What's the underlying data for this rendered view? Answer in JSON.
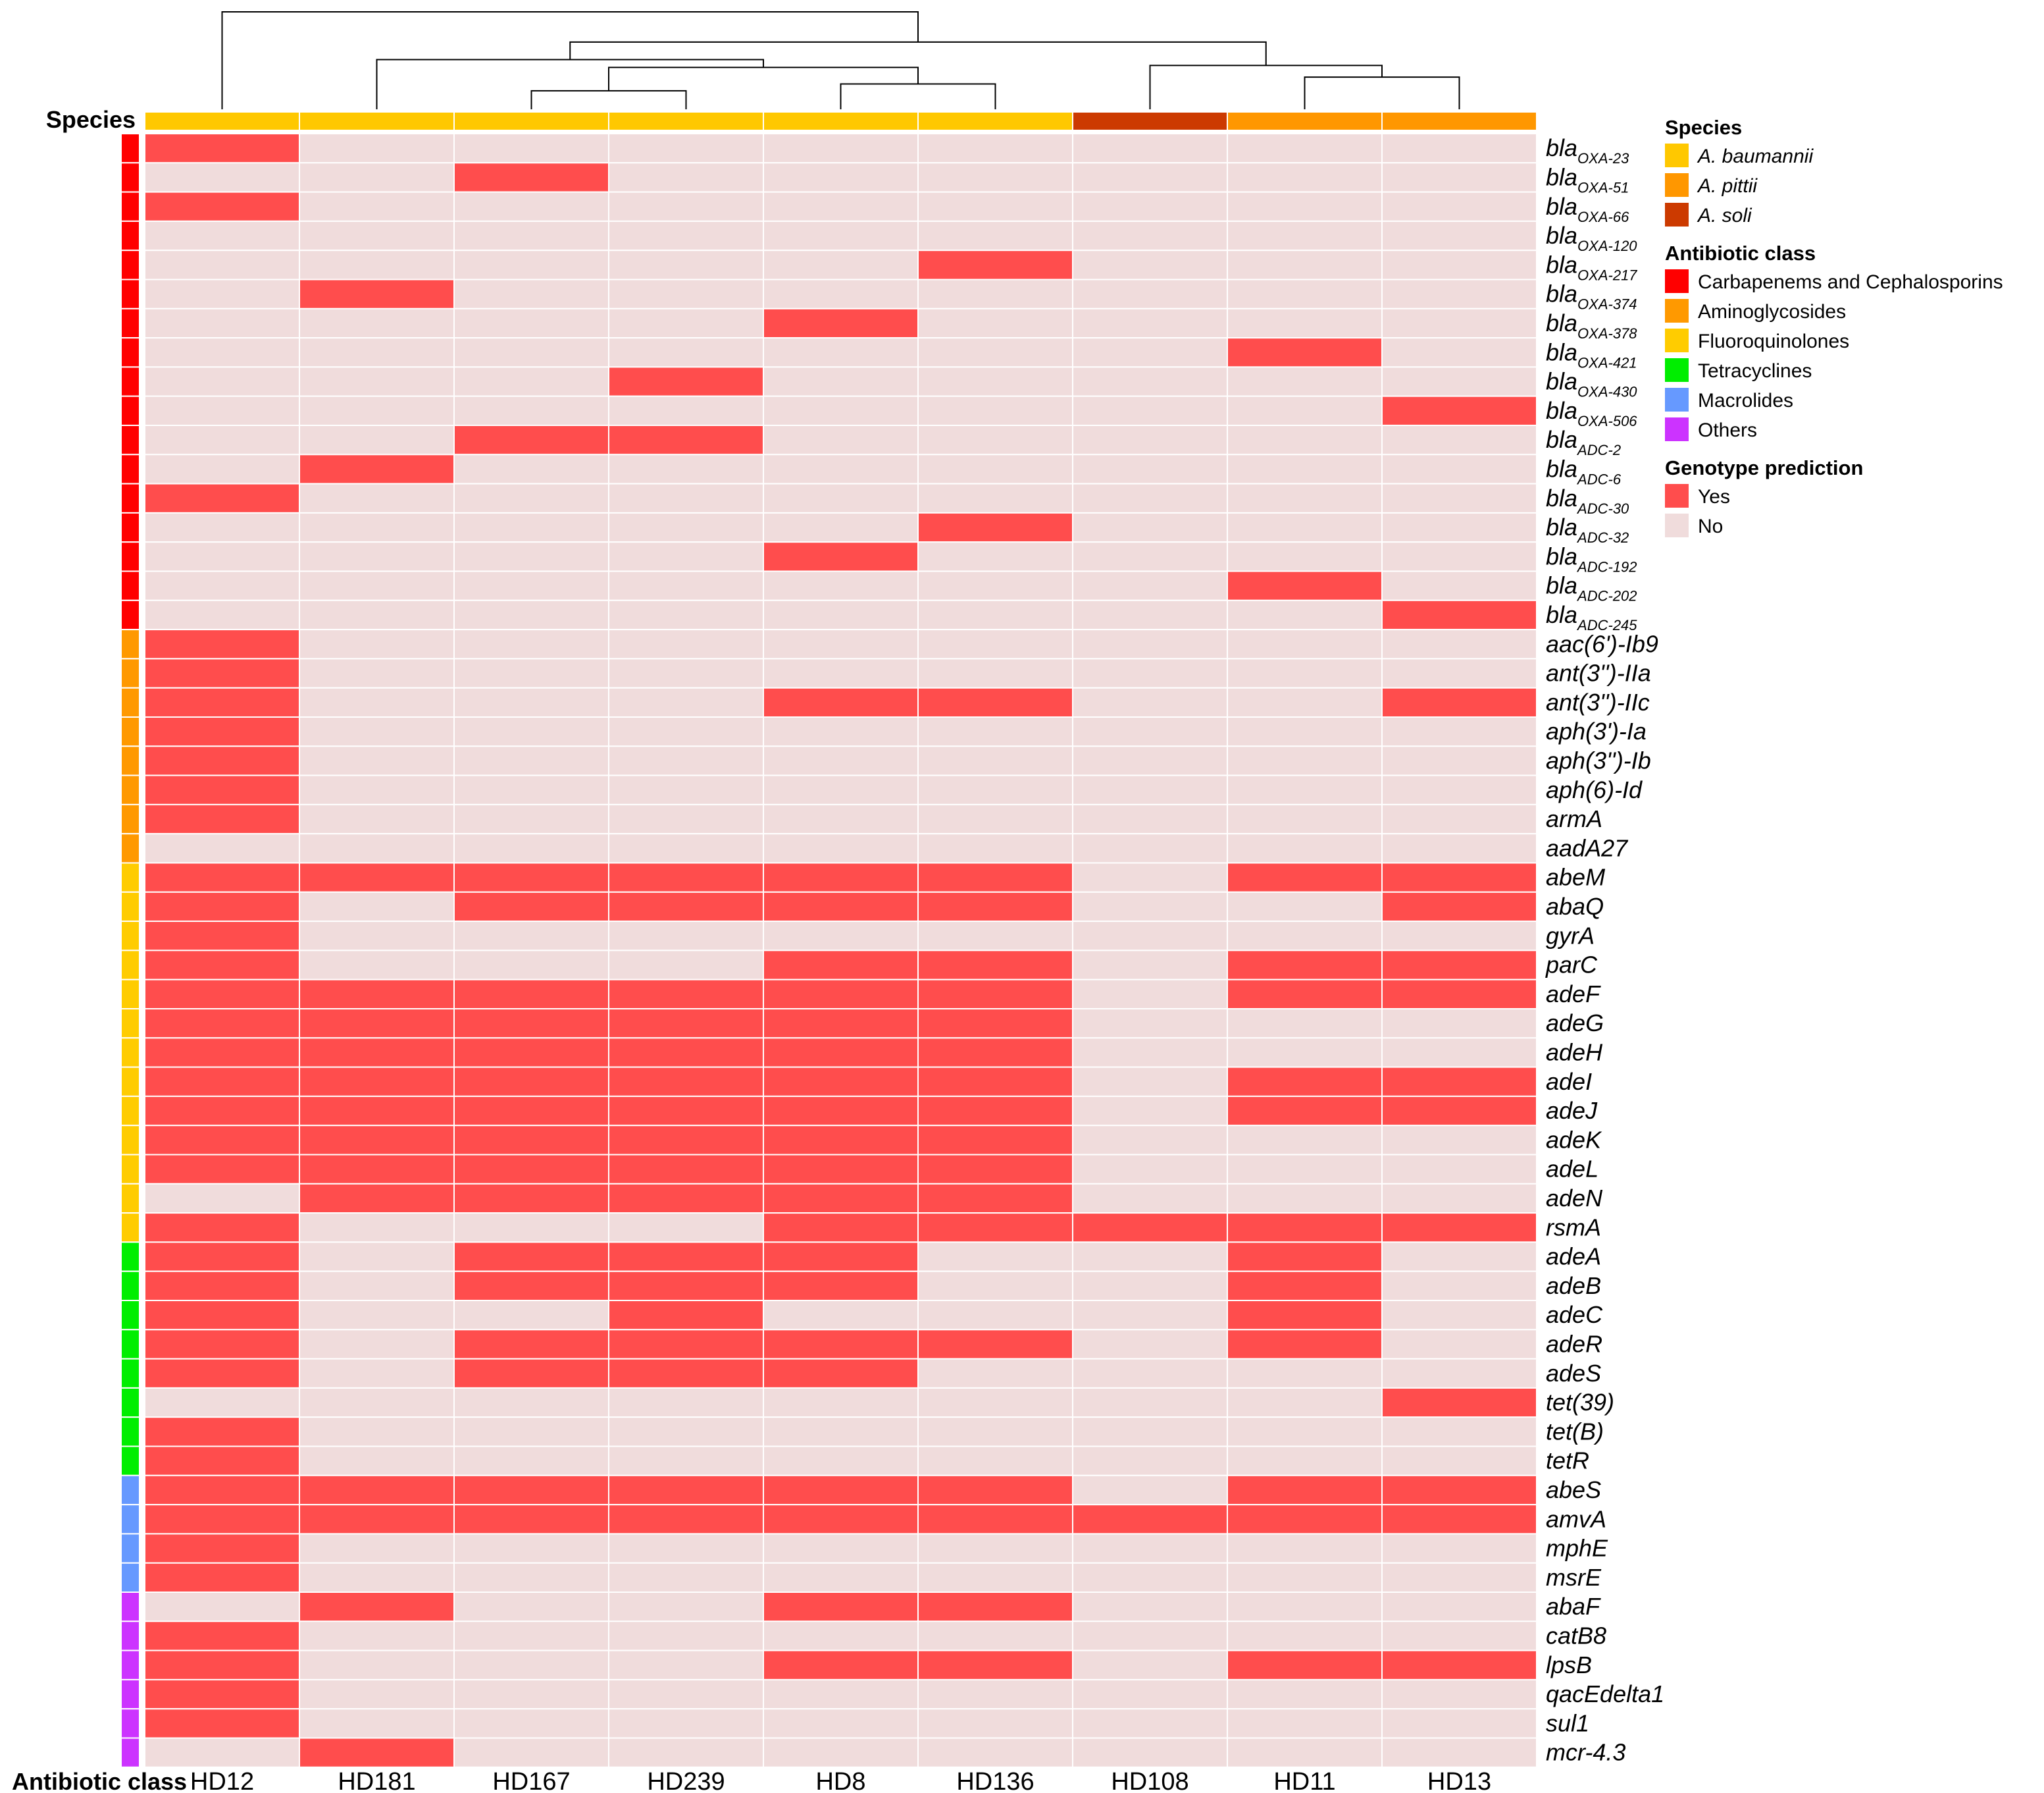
{
  "chart_data": {
    "type": "heatmap",
    "title": "",
    "row_annotation_title": "Antibiotic class",
    "column_annotation_title": "Species",
    "columns": [
      "HD12",
      "HD181",
      "HD167",
      "HD239",
      "HD8",
      "HD136",
      "HD108",
      "HD11",
      "HD13"
    ],
    "column_species": [
      "A. baumannii",
      "A. baumannii",
      "A. baumannii",
      "A. baumannii",
      "A. baumannii",
      "A. baumannii",
      "A. soli",
      "A. pittii",
      "A. pittii"
    ],
    "dendrogram": {
      "merge_order": [
        [
          "HD167",
          "HD239"
        ],
        [
          "HD8",
          "HD136"
        ],
        [
          "HD11",
          "HD13"
        ],
        [
          "HD167+HD239",
          "HD8+HD136"
        ],
        [
          "HD108",
          "HD11+HD13"
        ],
        [
          "HD181",
          "HD167+HD239+HD8+HD136"
        ],
        [
          "HD181+HD167+HD239+HD8+HD136",
          "HD108+HD11+HD13"
        ],
        [
          "HD12",
          "HD181+HD167+HD239+HD8+HD136+HD108+HD11+HD13"
        ]
      ],
      "merge_heights": [
        0.19,
        0.26,
        0.33,
        0.43,
        0.45,
        0.51,
        0.69,
        1.0
      ]
    },
    "rows": [
      {
        "label": "bla",
        "sub": "OXA-23",
        "class": "Carbapenems and Cephalosporins",
        "values": [
          1,
          0,
          0,
          0,
          0,
          0,
          0,
          0,
          0
        ]
      },
      {
        "label": "bla",
        "sub": "OXA-51",
        "class": "Carbapenems and Cephalosporins",
        "values": [
          0,
          0,
          1,
          0,
          0,
          0,
          0,
          0,
          0
        ]
      },
      {
        "label": "bla",
        "sub": "OXA-66",
        "class": "Carbapenems and Cephalosporins",
        "values": [
          1,
          0,
          0,
          0,
          0,
          0,
          0,
          0,
          0
        ]
      },
      {
        "label": "bla",
        "sub": "OXA-120",
        "class": "Carbapenems and Cephalosporins",
        "values": [
          0,
          0,
          0,
          0,
          0,
          0,
          0,
          0,
          0
        ]
      },
      {
        "label": "bla",
        "sub": "OXA-217",
        "class": "Carbapenems and Cephalosporins",
        "values": [
          0,
          0,
          0,
          0,
          0,
          1,
          0,
          0,
          0
        ]
      },
      {
        "label": "bla",
        "sub": "OXA-374",
        "class": "Carbapenems and Cephalosporins",
        "values": [
          0,
          1,
          0,
          0,
          0,
          0,
          0,
          0,
          0
        ]
      },
      {
        "label": "bla",
        "sub": "OXA-378",
        "class": "Carbapenems and Cephalosporins",
        "values": [
          0,
          0,
          0,
          0,
          1,
          0,
          0,
          0,
          0
        ]
      },
      {
        "label": "bla",
        "sub": "OXA-421",
        "class": "Carbapenems and Cephalosporins",
        "values": [
          0,
          0,
          0,
          0,
          0,
          0,
          0,
          1,
          0
        ]
      },
      {
        "label": "bla",
        "sub": "OXA-430",
        "class": "Carbapenems and Cephalosporins",
        "values": [
          0,
          0,
          0,
          1,
          0,
          0,
          0,
          0,
          0
        ]
      },
      {
        "label": "bla",
        "sub": "OXA-506",
        "class": "Carbapenems and Cephalosporins",
        "values": [
          0,
          0,
          0,
          0,
          0,
          0,
          0,
          0,
          1
        ]
      },
      {
        "label": "bla",
        "sub": "ADC-2",
        "class": "Carbapenems and Cephalosporins",
        "values": [
          0,
          0,
          1,
          1,
          0,
          0,
          0,
          0,
          0
        ]
      },
      {
        "label": "bla",
        "sub": "ADC-6",
        "class": "Carbapenems and Cephalosporins",
        "values": [
          0,
          1,
          0,
          0,
          0,
          0,
          0,
          0,
          0
        ]
      },
      {
        "label": "bla",
        "sub": "ADC-30",
        "class": "Carbapenems and Cephalosporins",
        "values": [
          1,
          0,
          0,
          0,
          0,
          0,
          0,
          0,
          0
        ]
      },
      {
        "label": "bla",
        "sub": "ADC-32",
        "class": "Carbapenems and Cephalosporins",
        "values": [
          0,
          0,
          0,
          0,
          0,
          1,
          0,
          0,
          0
        ]
      },
      {
        "label": "bla",
        "sub": "ADC-192",
        "class": "Carbapenems and Cephalosporins",
        "values": [
          0,
          0,
          0,
          0,
          1,
          0,
          0,
          0,
          0
        ]
      },
      {
        "label": "bla",
        "sub": "ADC-202",
        "class": "Carbapenems and Cephalosporins",
        "values": [
          0,
          0,
          0,
          0,
          0,
          0,
          0,
          1,
          0
        ]
      },
      {
        "label": "bla",
        "sub": "ADC-245",
        "class": "Carbapenems and Cephalosporins",
        "values": [
          0,
          0,
          0,
          0,
          0,
          0,
          0,
          0,
          1
        ]
      },
      {
        "label": "aac(6')-Ib9",
        "sub": "",
        "class": "Aminoglycosides",
        "values": [
          1,
          0,
          0,
          0,
          0,
          0,
          0,
          0,
          0
        ]
      },
      {
        "label": "ant(3'')-IIa",
        "sub": "",
        "class": "Aminoglycosides",
        "values": [
          1,
          0,
          0,
          0,
          0,
          0,
          0,
          0,
          0
        ]
      },
      {
        "label": "ant(3'')-IIc",
        "sub": "",
        "class": "Aminoglycosides",
        "values": [
          1,
          0,
          0,
          0,
          1,
          1,
          0,
          0,
          1
        ]
      },
      {
        "label": "aph(3')-Ia",
        "sub": "",
        "class": "Aminoglycosides",
        "values": [
          1,
          0,
          0,
          0,
          0,
          0,
          0,
          0,
          0
        ]
      },
      {
        "label": "aph(3'')-Ib",
        "sub": "",
        "class": "Aminoglycosides",
        "values": [
          1,
          0,
          0,
          0,
          0,
          0,
          0,
          0,
          0
        ]
      },
      {
        "label": "aph(6)-Id",
        "sub": "",
        "class": "Aminoglycosides",
        "values": [
          1,
          0,
          0,
          0,
          0,
          0,
          0,
          0,
          0
        ]
      },
      {
        "label": "armA",
        "sub": "",
        "class": "Aminoglycosides",
        "values": [
          1,
          0,
          0,
          0,
          0,
          0,
          0,
          0,
          0
        ]
      },
      {
        "label": "aadA27",
        "sub": "",
        "class": "Aminoglycosides",
        "values": [
          0,
          0,
          0,
          0,
          0,
          0,
          0,
          0,
          0
        ]
      },
      {
        "label": "abeM",
        "sub": "",
        "class": "Fluoroquinolones",
        "values": [
          1,
          1,
          1,
          1,
          1,
          1,
          0,
          1,
          1
        ]
      },
      {
        "label": "abaQ",
        "sub": "",
        "class": "Fluoroquinolones",
        "values": [
          1,
          0,
          1,
          1,
          1,
          1,
          0,
          0,
          1
        ]
      },
      {
        "label": "gyrA",
        "sub": "",
        "class": "Fluoroquinolones",
        "values": [
          1,
          0,
          0,
          0,
          0,
          0,
          0,
          0,
          0
        ]
      },
      {
        "label": "parC",
        "sub": "",
        "class": "Fluoroquinolones",
        "values": [
          1,
          0,
          0,
          0,
          1,
          1,
          0,
          1,
          1
        ]
      },
      {
        "label": "adeF",
        "sub": "",
        "class": "Fluoroquinolones",
        "values": [
          1,
          1,
          1,
          1,
          1,
          1,
          0,
          1,
          1
        ]
      },
      {
        "label": "adeG",
        "sub": "",
        "class": "Fluoroquinolones",
        "values": [
          1,
          1,
          1,
          1,
          1,
          1,
          0,
          0,
          0
        ]
      },
      {
        "label": "adeH",
        "sub": "",
        "class": "Fluoroquinolones",
        "values": [
          1,
          1,
          1,
          1,
          1,
          1,
          0,
          0,
          0
        ]
      },
      {
        "label": "adeI",
        "sub": "",
        "class": "Fluoroquinolones",
        "values": [
          1,
          1,
          1,
          1,
          1,
          1,
          0,
          1,
          1
        ]
      },
      {
        "label": "adeJ",
        "sub": "",
        "class": "Fluoroquinolones",
        "values": [
          1,
          1,
          1,
          1,
          1,
          1,
          0,
          1,
          1
        ]
      },
      {
        "label": "adeK",
        "sub": "",
        "class": "Fluoroquinolones",
        "values": [
          1,
          1,
          1,
          1,
          1,
          1,
          0,
          0,
          0
        ]
      },
      {
        "label": "adeL",
        "sub": "",
        "class": "Fluoroquinolones",
        "values": [
          1,
          1,
          1,
          1,
          1,
          1,
          0,
          0,
          0
        ]
      },
      {
        "label": "adeN",
        "sub": "",
        "class": "Fluoroquinolones",
        "values": [
          0,
          1,
          1,
          1,
          1,
          1,
          0,
          0,
          0
        ]
      },
      {
        "label": "rsmA",
        "sub": "",
        "class": "Fluoroquinolones",
        "values": [
          1,
          0,
          0,
          0,
          1,
          1,
          1,
          1,
          1
        ]
      },
      {
        "label": "adeA",
        "sub": "",
        "class": "Tetracyclines",
        "values": [
          1,
          0,
          1,
          1,
          1,
          0,
          0,
          1,
          0
        ]
      },
      {
        "label": "adeB",
        "sub": "",
        "class": "Tetracyclines",
        "values": [
          1,
          0,
          1,
          1,
          1,
          0,
          0,
          1,
          0
        ]
      },
      {
        "label": "adeC",
        "sub": "",
        "class": "Tetracyclines",
        "values": [
          1,
          0,
          0,
          1,
          0,
          0,
          0,
          1,
          0
        ]
      },
      {
        "label": "adeR",
        "sub": "",
        "class": "Tetracyclines",
        "values": [
          1,
          0,
          1,
          1,
          1,
          1,
          0,
          1,
          0
        ]
      },
      {
        "label": "adeS",
        "sub": "",
        "class": "Tetracyclines",
        "values": [
          1,
          0,
          1,
          1,
          1,
          0,
          0,
          0,
          0
        ]
      },
      {
        "label": "tet(39)",
        "sub": "",
        "class": "Tetracyclines",
        "values": [
          0,
          0,
          0,
          0,
          0,
          0,
          0,
          0,
          1
        ]
      },
      {
        "label": "tet(B)",
        "sub": "",
        "class": "Tetracyclines",
        "values": [
          1,
          0,
          0,
          0,
          0,
          0,
          0,
          0,
          0
        ]
      },
      {
        "label": "tetR",
        "sub": "",
        "class": "Tetracyclines",
        "values": [
          1,
          0,
          0,
          0,
          0,
          0,
          0,
          0,
          0
        ]
      },
      {
        "label": "abeS",
        "sub": "",
        "class": "Macrolides",
        "values": [
          1,
          1,
          1,
          1,
          1,
          1,
          0,
          1,
          1
        ]
      },
      {
        "label": "amvA",
        "sub": "",
        "class": "Macrolides",
        "values": [
          1,
          1,
          1,
          1,
          1,
          1,
          1,
          1,
          1
        ]
      },
      {
        "label": "mphE",
        "sub": "",
        "class": "Macrolides",
        "values": [
          1,
          0,
          0,
          0,
          0,
          0,
          0,
          0,
          0
        ]
      },
      {
        "label": "msrE",
        "sub": "",
        "class": "Macrolides",
        "values": [
          1,
          0,
          0,
          0,
          0,
          0,
          0,
          0,
          0
        ]
      },
      {
        "label": "abaF",
        "sub": "",
        "class": "Others",
        "values": [
          0,
          1,
          0,
          0,
          1,
          1,
          0,
          0,
          0
        ]
      },
      {
        "label": "catB8",
        "sub": "",
        "class": "Others",
        "values": [
          1,
          0,
          0,
          0,
          0,
          0,
          0,
          0,
          0
        ]
      },
      {
        "label": "lpsB",
        "sub": "",
        "class": "Others",
        "values": [
          1,
          0,
          0,
          0,
          1,
          1,
          0,
          1,
          1
        ]
      },
      {
        "label": "qacEdelta1",
        "sub": "",
        "class": "Others",
        "values": [
          1,
          0,
          0,
          0,
          0,
          0,
          0,
          0,
          0
        ]
      },
      {
        "label": "sul1",
        "sub": "",
        "class": "Others",
        "values": [
          1,
          0,
          0,
          0,
          0,
          0,
          0,
          0,
          0
        ]
      },
      {
        "label": "mcr-4.3",
        "sub": "",
        "class": "Others",
        "values": [
          0,
          1,
          0,
          0,
          0,
          0,
          0,
          0,
          0
        ]
      }
    ],
    "legend": {
      "species": {
        "title": "Species",
        "items": [
          {
            "label": "A. baumannii",
            "color": "#FFC800"
          },
          {
            "label": "A. pittii",
            "color": "#FF9700"
          },
          {
            "label": "A. soli",
            "color": "#CC3A00"
          }
        ]
      },
      "antibiotic_class": {
        "title": "Antibiotic class",
        "items": [
          {
            "label": "Carbapenems and Cephalosporins",
            "color": "#FF0000"
          },
          {
            "label": "Aminoglycosides",
            "color": "#FF9900"
          },
          {
            "label": "Fluoroquinolones",
            "color": "#FFCC00"
          },
          {
            "label": "Tetracyclines",
            "color": "#00EE00"
          },
          {
            "label": "Macrolides",
            "color": "#6699FF"
          },
          {
            "label": "Others",
            "color": "#CC33FF"
          }
        ]
      },
      "genotype": {
        "title": "Genotype prediction",
        "items": [
          {
            "label": "Yes",
            "value": 1,
            "color": "#FF4D4D"
          },
          {
            "label": "No",
            "value": 0,
            "color": "#F0DCDC"
          }
        ]
      }
    }
  }
}
